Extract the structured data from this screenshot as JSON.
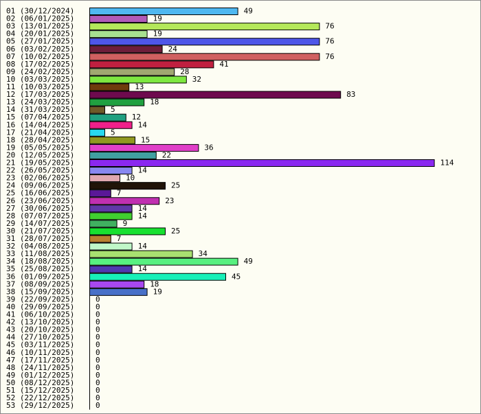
{
  "chart_data": {
    "type": "bar",
    "orientation": "horizontal",
    "title": "",
    "xlabel": "",
    "ylabel": "",
    "xlim": [
      0,
      114
    ],
    "grid": false,
    "legend": "none",
    "categories": [
      "01 (30/12/2024)",
      "02 (06/01/2025)",
      "03 (13/01/2025)",
      "04 (20/01/2025)",
      "05 (27/01/2025)",
      "06 (03/02/2025)",
      "07 (10/02/2025)",
      "08 (17/02/2025)",
      "09 (24/02/2025)",
      "10 (03/03/2025)",
      "11 (10/03/2025)",
      "12 (17/03/2025)",
      "13 (24/03/2025)",
      "14 (31/03/2025)",
      "15 (07/04/2025)",
      "16 (14/04/2025)",
      "17 (21/04/2025)",
      "18 (28/04/2025)",
      "19 (05/05/2025)",
      "20 (12/05/2025)",
      "21 (19/05/2025)",
      "22 (26/05/2025)",
      "23 (02/06/2025)",
      "24 (09/06/2025)",
      "25 (16/06/2025)",
      "26 (23/06/2025)",
      "27 (30/06/2025)",
      "28 (07/07/2025)",
      "29 (14/07/2025)",
      "30 (21/07/2025)",
      "31 (28/07/2025)",
      "32 (04/08/2025)",
      "33 (11/08/2025)",
      "34 (18/08/2025)",
      "35 (25/08/2025)",
      "36 (01/09/2025)",
      "37 (08/09/2025)",
      "38 (15/09/2025)",
      "39 (22/09/2025)",
      "40 (29/09/2025)",
      "41 (06/10/2025)",
      "42 (13/10/2025)",
      "43 (20/10/2025)",
      "44 (27/10/2025)",
      "45 (03/11/2025)",
      "46 (10/11/2025)",
      "47 (17/11/2025)",
      "48 (24/11/2025)",
      "49 (01/12/2025)",
      "50 (08/12/2025)",
      "51 (15/12/2025)",
      "52 (22/12/2025)",
      "53 (29/12/2025)"
    ],
    "values": [
      49,
      19,
      76,
      19,
      76,
      24,
      76,
      41,
      28,
      32,
      13,
      83,
      18,
      5,
      12,
      14,
      5,
      15,
      36,
      22,
      114,
      14,
      10,
      25,
      7,
      23,
      14,
      14,
      9,
      25,
      7,
      14,
      34,
      49,
      14,
      45,
      18,
      19,
      0,
      0,
      0,
      0,
      0,
      0,
      0,
      0,
      0,
      0,
      0,
      0,
      0,
      0,
      0
    ],
    "colors": [
      "#4fb8f0",
      "#b05ab8",
      "#b4e85a",
      "#a8e090",
      "#4e56e8",
      "#6e1e3a",
      "#d06060",
      "#c02040",
      "#a0a870",
      "#7ee840",
      "#6e3c0c",
      "#6e0a4e",
      "#20a040",
      "#6e5a28",
      "#20a080",
      "#f0208a",
      "#28d8f0",
      "#909820",
      "#e040c8",
      "#40a0a0",
      "#8a28f0",
      "#8888f0",
      "#e0a8b0",
      "#201408",
      "#5a1898",
      "#c030b0",
      "#6038a8",
      "#40d030",
      "#40b060",
      "#18e030",
      "#b88030",
      "#c0f8c8",
      "#a8e070",
      "#58f080",
      "#5038b0",
      "#18f0b8",
      "#a848f0",
      "#4870c8",
      "#000000",
      "#000000",
      "#000000",
      "#000000",
      "#000000",
      "#000000",
      "#000000",
      "#000000",
      "#000000",
      "#000000",
      "#000000",
      "#000000",
      "#000000",
      "#000000",
      "#000000"
    ]
  }
}
